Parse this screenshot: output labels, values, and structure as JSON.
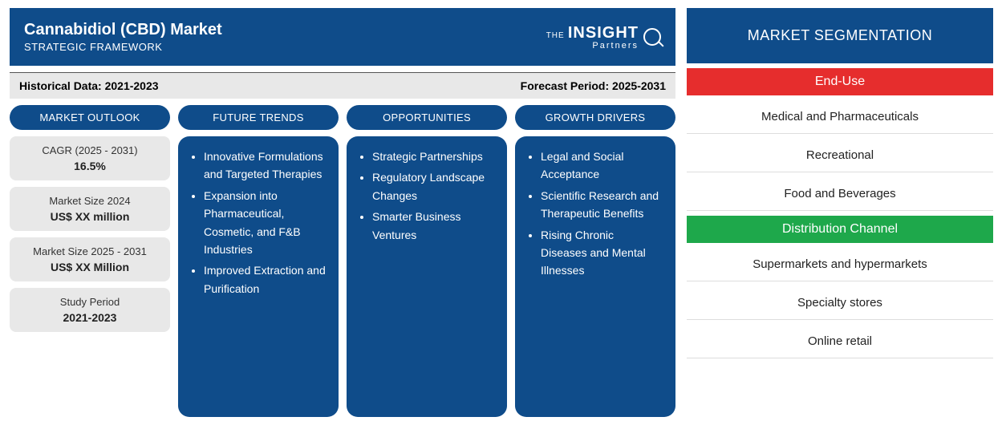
{
  "colors": {
    "primary_blue": "#0f4c8a",
    "gray_bg": "#e8e8e8",
    "red": "#e62d2d",
    "green": "#1ea84b",
    "text_dark": "#222222",
    "white": "#ffffff"
  },
  "header": {
    "title": "Cannabidiol (CBD) Market",
    "subtitle": "STRATEGIC FRAMEWORK",
    "logo_the": "THE",
    "logo_main": "INSIGHT",
    "logo_sub": "Partners"
  },
  "period": {
    "historical_label": "Historical Data:",
    "historical_value": "2021-2023",
    "forecast_label": "Forecast Period:",
    "forecast_value": "2025-2031"
  },
  "outlook": {
    "heading": "MARKET OUTLOOK",
    "stats": [
      {
        "label": "CAGR (2025 - 2031)",
        "value": "16.5%"
      },
      {
        "label": "Market Size 2024",
        "value": "US$ XX million"
      },
      {
        "label": "Market Size 2025 - 2031",
        "value": "US$ XX Million"
      },
      {
        "label": "Study Period",
        "value": "2021-2023"
      }
    ]
  },
  "trends": {
    "heading": "FUTURE TRENDS",
    "items": [
      "Innovative Formulations and Targeted Therapies",
      "Expansion into Pharmaceutical, Cosmetic, and F&B Industries",
      "Improved Extraction and Purification"
    ]
  },
  "opportunities": {
    "heading": "OPPORTUNITIES",
    "items": [
      "Strategic Partnerships",
      "Regulatory Landscape Changes",
      "Smarter Business Ventures"
    ]
  },
  "drivers": {
    "heading": "GROWTH DRIVERS",
    "items": [
      "Legal and Social Acceptance",
      "Scientific Research and Therapeutic Benefits",
      "Rising Chronic Diseases and Mental Illnesses"
    ]
  },
  "segmentation": {
    "heading": "MARKET SEGMENTATION",
    "groups": [
      {
        "title": "End-Use",
        "color_class": "red",
        "items": [
          "Medical and Pharmaceuticals",
          "Recreational",
          "Food and Beverages"
        ]
      },
      {
        "title": "Distribution Channel",
        "color_class": "green",
        "items": [
          "Supermarkets and hypermarkets",
          "Specialty stores",
          "Online retail"
        ]
      }
    ]
  }
}
